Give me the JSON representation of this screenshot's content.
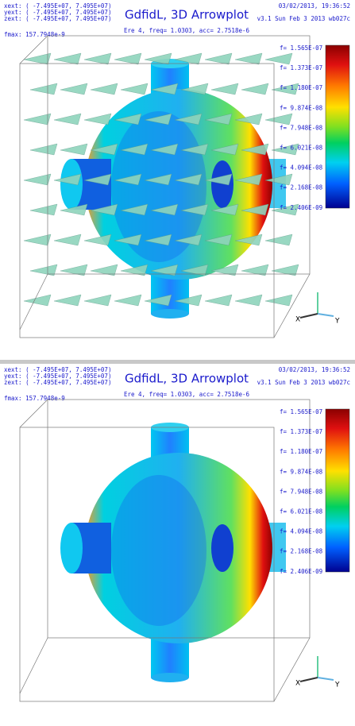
{
  "panels": [
    {
      "header": {
        "title": "GdfidL, 3D Arrowplot",
        "subtitle": "Ere 4, freq= 1.0303, acc= 2.7518e-6",
        "extents": [
          "xext: ( -7.495E+07,  7.495E+07)",
          "yext: ( -7.495E+07,  7.495E+07)",
          "zext: ( -7.495E+07,  7.495E+07)"
        ],
        "fmax": "fmax:  157.7948e-9",
        "date": "03/02/2013, 19:36:52",
        "version": "v3.1 Sun Feb  3 2013 wb027c"
      },
      "colorbar_labels": [
        "f= 1.565E-07",
        "f= 1.373E-07",
        "f= 1.180E-07",
        "f= 9.874E-08",
        "f= 7.948E-08",
        "f= 6.021E-08",
        "f= 4.094E-08",
        "f= 2.168E-08",
        "f= 2.406E-09"
      ],
      "axes_icon": [
        "X",
        "Y"
      ]
    },
    {
      "header": {
        "title": "GdfidL, 3D Arrowplot",
        "subtitle": "Ere 4, freq= 1.0303, acc= 2.7518e-6",
        "extents": [
          "xext: ( -7.495E+07,  7.495E+07)",
          "yext: ( -7.495E+07,  7.495E+07)",
          "zext: ( -7.495E+07,  7.495E+07)"
        ],
        "fmax": "fmax:  157.7948e-9",
        "date": "03/02/2013, 19:36:52",
        "version": "v3.1 Sun Feb  3 2013 wb027c"
      },
      "colorbar_labels": [
        "f= 1.565E-07",
        "f= 1.373E-07",
        "f= 1.180E-07",
        "f= 9.874E-08",
        "f= 7.948E-08",
        "f= 6.021E-08",
        "f= 4.094E-08",
        "f= 2.168E-08",
        "f= 2.406E-09"
      ],
      "axes_icon": [
        "X",
        "Y"
      ]
    }
  ]
}
